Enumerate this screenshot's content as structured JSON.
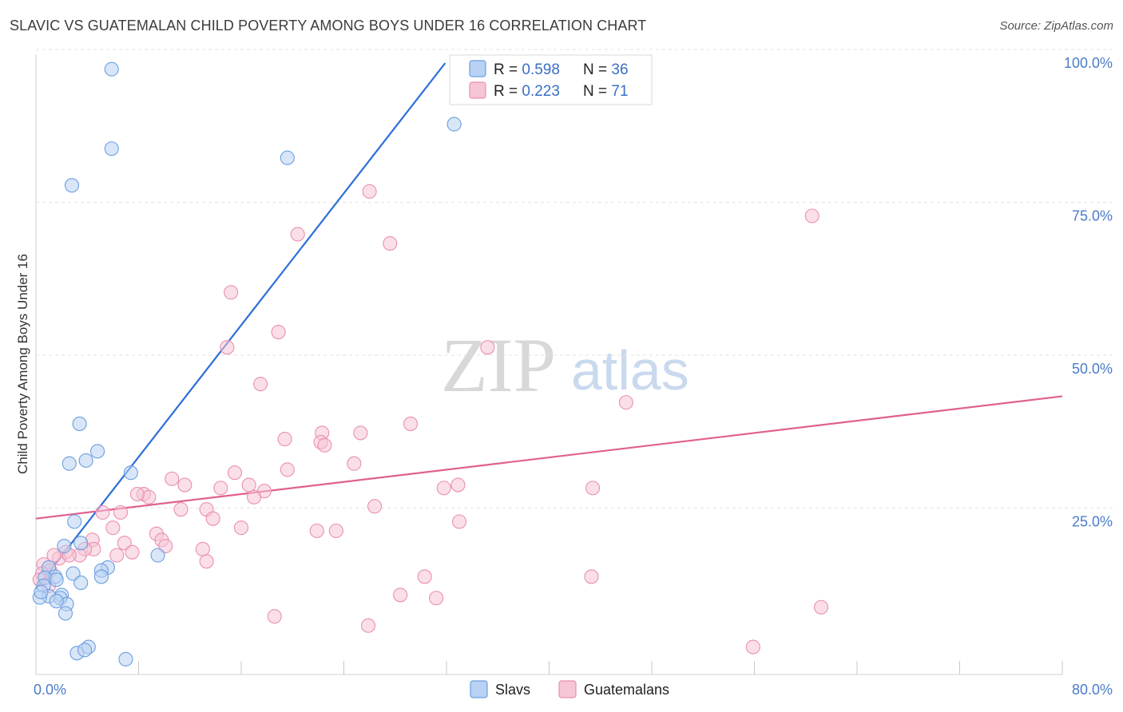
{
  "title": "SLAVIC VS GUATEMALAN CHILD POVERTY AMONG BOYS UNDER 16 CORRELATION CHART",
  "source": "Source: ZipAtlas.com",
  "watermark": {
    "left": "ZIP",
    "right": "atlas"
  },
  "colors": {
    "slavs": "#6c9fe0",
    "slavs_fill": "#b9d1f3",
    "guat": "#ea8fb0",
    "guat_fill": "#f6c5d6",
    "slavs_line": "#2b6fd6",
    "guat_line": "#e0608f"
  },
  "legend_box": {
    "rows": [
      {
        "r_label": "R = ",
        "r_value": "0.598",
        "n_label": "N = ",
        "n_value": "36"
      },
      {
        "r_label": "R = ",
        "r_value": "0.223",
        "n_label": "N = ",
        "n_value": "71"
      }
    ]
  },
  "bottom_legend": [
    "Slavs",
    "Guatemalans"
  ],
  "chart_data": {
    "type": "scatter",
    "title": "SLAVIC VS GUATEMALAN CHILD POVERTY AMONG BOYS UNDER 16 CORRELATION CHART",
    "xlabel": "",
    "ylabel": "Child Poverty Among Boys Under 16",
    "xlim": [
      0,
      80
    ],
    "ylim": [
      0,
      100
    ],
    "x_tick_labels": [
      "0.0%",
      "80.0%"
    ],
    "y_tick_labels": [
      "100.0%",
      "75.0%",
      "50.0%",
      "25.0%"
    ],
    "y_tick_values": [
      100,
      75,
      50,
      25
    ],
    "series": [
      {
        "name": "Slavs",
        "r": 0.598,
        "n": 36,
        "trend": {
          "x0": 0,
          "y0": 14,
          "x1": 31.9,
          "y1": 100
        },
        "points": [
          [
            5.9,
            99.0
          ],
          [
            5.9,
            86.0
          ],
          [
            32.6,
            90.0
          ],
          [
            19.6,
            84.5
          ],
          [
            2.8,
            80.0
          ],
          [
            3.4,
            41.0
          ],
          [
            4.8,
            36.5
          ],
          [
            2.6,
            34.5
          ],
          [
            3.9,
            35.0
          ],
          [
            7.4,
            33.0
          ],
          [
            3.0,
            25.0
          ],
          [
            9.5,
            19.5
          ],
          [
            2.2,
            21.0
          ],
          [
            5.6,
            17.5
          ],
          [
            1.0,
            17.5
          ],
          [
            5.1,
            17.0
          ],
          [
            2.9,
            16.5
          ],
          [
            5.1,
            16.0
          ],
          [
            1.5,
            16.0
          ],
          [
            0.7,
            15.8
          ],
          [
            1.6,
            15.5
          ],
          [
            0.6,
            14.5
          ],
          [
            3.5,
            15.0
          ],
          [
            2.0,
            13.0
          ],
          [
            1.0,
            12.8
          ],
          [
            0.3,
            12.6
          ],
          [
            1.9,
            12.5
          ],
          [
            2.4,
            11.5
          ],
          [
            1.6,
            12.0
          ],
          [
            0.4,
            13.5
          ],
          [
            2.3,
            10.0
          ],
          [
            4.1,
            4.5
          ],
          [
            3.2,
            3.5
          ],
          [
            3.8,
            4.0
          ],
          [
            7.0,
            2.5
          ],
          [
            3.5,
            21.5
          ]
        ]
      },
      {
        "name": "Guatemalans",
        "r": 0.223,
        "n": 71,
        "trend": {
          "x0": 0,
          "y0": 25.5,
          "x1": 80,
          "y1": 45.5
        },
        "points": [
          [
            26.0,
            79.0
          ],
          [
            60.5,
            75.0
          ],
          [
            20.4,
            72.0
          ],
          [
            27.6,
            70.5
          ],
          [
            15.2,
            62.5
          ],
          [
            18.9,
            56.0
          ],
          [
            14.9,
            53.5
          ],
          [
            35.2,
            53.5
          ],
          [
            17.5,
            47.5
          ],
          [
            46.0,
            44.5
          ],
          [
            29.2,
            41.0
          ],
          [
            25.3,
            39.5
          ],
          [
            22.3,
            39.5
          ],
          [
            19.4,
            38.5
          ],
          [
            22.2,
            38.0
          ],
          [
            22.5,
            37.5
          ],
          [
            24.8,
            34.5
          ],
          [
            19.6,
            33.5
          ],
          [
            15.5,
            33.0
          ],
          [
            10.6,
            32.0
          ],
          [
            11.6,
            31.0
          ],
          [
            16.6,
            31.0
          ],
          [
            14.4,
            30.5
          ],
          [
            32.9,
            31.0
          ],
          [
            43.4,
            30.5
          ],
          [
            17.8,
            30.0
          ],
          [
            31.8,
            30.5
          ],
          [
            8.4,
            29.5
          ],
          [
            17.0,
            29.0
          ],
          [
            8.8,
            29.0
          ],
          [
            7.9,
            29.5
          ],
          [
            26.4,
            27.5
          ],
          [
            11.3,
            27.0
          ],
          [
            13.3,
            27.0
          ],
          [
            6.6,
            26.5
          ],
          [
            5.2,
            26.5
          ],
          [
            13.8,
            25.5
          ],
          [
            33.0,
            25.0
          ],
          [
            6.0,
            24.0
          ],
          [
            16.0,
            24.0
          ],
          [
            23.4,
            23.5
          ],
          [
            21.9,
            23.5
          ],
          [
            9.4,
            23.0
          ],
          [
            4.4,
            22.0
          ],
          [
            9.8,
            22.0
          ],
          [
            6.9,
            21.5
          ],
          [
            10.1,
            21.0
          ],
          [
            4.5,
            20.5
          ],
          [
            3.8,
            20.5
          ],
          [
            13.0,
            20.5
          ],
          [
            2.3,
            20.0
          ],
          [
            7.5,
            20.0
          ],
          [
            3.4,
            19.5
          ],
          [
            6.3,
            19.5
          ],
          [
            1.8,
            19.0
          ],
          [
            1.4,
            19.5
          ],
          [
            2.6,
            19.5
          ],
          [
            0.6,
            18.0
          ],
          [
            13.3,
            18.5
          ],
          [
            1.1,
            17.0
          ],
          [
            0.5,
            16.5
          ],
          [
            30.3,
            16.0
          ],
          [
            43.3,
            16.0
          ],
          [
            1.0,
            14.5
          ],
          [
            28.4,
            13.0
          ],
          [
            31.2,
            12.5
          ],
          [
            61.2,
            11.0
          ],
          [
            18.6,
            9.5
          ],
          [
            25.9,
            8.0
          ],
          [
            55.9,
            4.5
          ],
          [
            0.3,
            15.5
          ]
        ]
      }
    ]
  }
}
